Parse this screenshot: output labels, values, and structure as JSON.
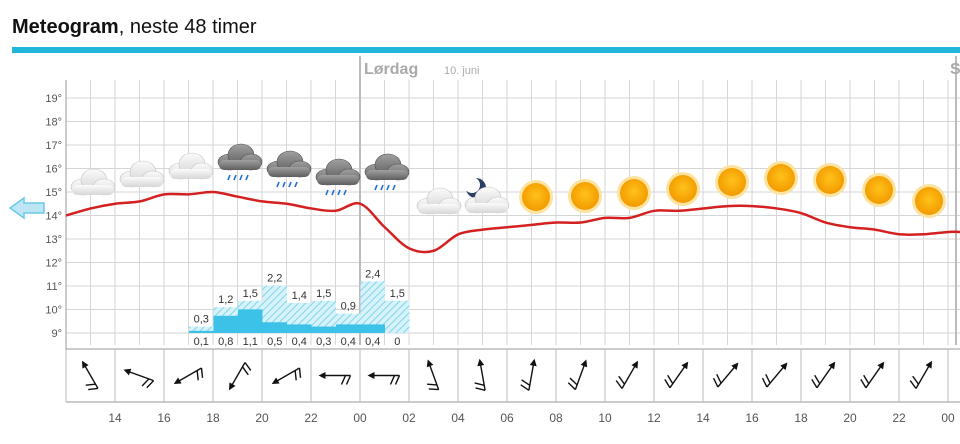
{
  "header": {
    "title_bold": "Meteogram",
    "title_rest": ", neste 48 timer"
  },
  "day_marker": {
    "label": "Lørdag",
    "date": "10. juni",
    "next_label": "S"
  },
  "chart_data": {
    "type": "line",
    "title": "Meteogram, neste 48 timer",
    "ylim": [
      9,
      19
    ],
    "yticks": [
      "9°",
      "10°",
      "11°",
      "12°",
      "13°",
      "14°",
      "15°",
      "16°",
      "17°",
      "18°",
      "19°"
    ],
    "xticks": [
      "14",
      "16",
      "18",
      "20",
      "22",
      "00",
      "02",
      "04",
      "06",
      "08",
      "10",
      "12",
      "14",
      "16",
      "18",
      "20",
      "22",
      "00"
    ],
    "temperature": {
      "hours": [
        0,
        1,
        2,
        3,
        4,
        5,
        6,
        7,
        8,
        9,
        10,
        11,
        12,
        13,
        14,
        15,
        16,
        17,
        18,
        19,
        20,
        21,
        22,
        23,
        24,
        25,
        26,
        27,
        28,
        29,
        30,
        31,
        32,
        33,
        34,
        35,
        36
      ],
      "values": [
        14.0,
        14.3,
        14.5,
        14.6,
        14.9,
        14.9,
        15.0,
        14.8,
        14.6,
        14.5,
        14.3,
        14.2,
        14.5,
        13.5,
        12.6,
        12.5,
        13.2,
        13.4,
        13.5,
        13.6,
        13.7,
        13.7,
        13.9,
        13.9,
        14.2,
        14.2,
        14.3,
        14.4,
        14.4,
        14.3,
        14.1,
        13.7,
        13.5,
        13.4,
        13.2,
        13.2,
        13.3
      ]
    },
    "precipitation": {
      "max_mm": [
        null,
        null,
        null,
        null,
        null,
        0.3,
        1.2,
        1.5,
        2.2,
        1.4,
        1.5,
        0.9,
        2.4,
        1.5
      ],
      "min_mm": [
        null,
        null,
        null,
        null,
        null,
        0.1,
        0.8,
        1.1,
        0.5,
        0.4,
        0.3,
        0.4,
        0.4,
        0
      ],
      "max_labels": [
        "",
        "",
        "",
        "",
        "",
        "0,3",
        "1,2",
        "1,5",
        "2,2",
        "1,4",
        "1,5",
        "0,9",
        "2,4",
        "1,5"
      ],
      "min_labels": [
        "",
        "",
        "",
        "",
        "",
        "0,1",
        "0,8",
        "1,1",
        "0,5",
        "0,4",
        "0,3",
        "0,4",
        "0,4",
        "0"
      ]
    },
    "symbols": [
      "cloud",
      "cloud",
      "cloud",
      "cloud-rain",
      "cloud-rain",
      "cloud-rain",
      "cloud-rain",
      "cloud",
      "moon-cloud",
      "sun",
      "sun",
      "sun",
      "sun",
      "sun",
      "sun",
      "sun",
      "sun",
      "sun"
    ],
    "wind_arrows": [
      "wind-arrow",
      "wind-arrow",
      "wind-arrow",
      "wind-arrow",
      "wind-arrow",
      "wind-arrow",
      "wind-arrow",
      "wind-arrow",
      "wind-arrow",
      "wind-arrow",
      "wind-arrow",
      "wind-arrow",
      "wind-arrow",
      "wind-arrow",
      "wind-arrow",
      "wind-arrow",
      "wind-arrow",
      "wind-arrow"
    ],
    "wind_direction_deg": [
      330,
      290,
      240,
      210,
      240,
      270,
      270,
      340,
      350,
      10,
      20,
      30,
      35,
      40,
      40,
      35,
      35,
      30
    ],
    "grid": true,
    "colors": {
      "temperature": "#d42020",
      "precip_fill": "#3cc2e8",
      "precip_hatch": "#7ed6ef",
      "sun": "#f5a800",
      "nav_arrow": "#6cc8ea"
    },
    "nav_icon": "arrow-left-icon"
  }
}
